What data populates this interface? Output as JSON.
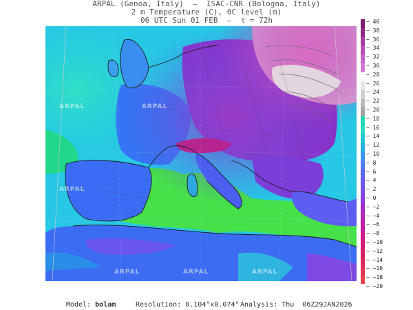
{
  "header": {
    "line1": "ARPAL (Genoa, Italy)  —  ISAC-CNR (Bologna, Italy)",
    "line2": "2 m Temperature (C), 0C level (m)",
    "line3": "06 UTC Sun 01 FEB  —  τ = 72h"
  },
  "watermark": "ARPAL",
  "colorbar": {
    "ticks": [
      "40",
      "38",
      "36",
      "34",
      "32",
      "30",
      "28",
      "26",
      "24",
      "22",
      "20",
      "18",
      "16",
      "14",
      "12",
      "10",
      "8",
      "6",
      "4",
      "2",
      "0",
      "−2",
      "−4",
      "−6",
      "−8",
      "−10",
      "−12",
      "−14",
      "−16",
      "−18",
      "−20"
    ],
    "colors": [
      "#7a1f6b",
      "#8e2a86",
      "#a33aa0",
      "#b94fb6",
      "#c765c6",
      "#d27ad2",
      "#ffffff",
      "#e5e5e5",
      "#cfcfcf",
      "#b8b8b8",
      "#a3a3a3",
      "#22d8b8",
      "#2ad9c0",
      "#22c8d0",
      "#2ab0e0",
      "#3a94f0",
      "#4f7cf5",
      "#5a66f2",
      "#6a58ee",
      "#7d4ae4",
      "#8e3cd6",
      "#a42cc4",
      "#b424b2",
      "#c21ea0",
      "#cc1c8c",
      "#d21c78",
      "#d8206a",
      "#dc2a60",
      "#e03656",
      "#e4424c"
    ]
  },
  "footer": {
    "model_label": "Model:",
    "model_value": "bolam",
    "resolution": "Resolution: 0.104°x0.074°",
    "analysis": "Analysis: Thu  06Z29JAN2026"
  }
}
